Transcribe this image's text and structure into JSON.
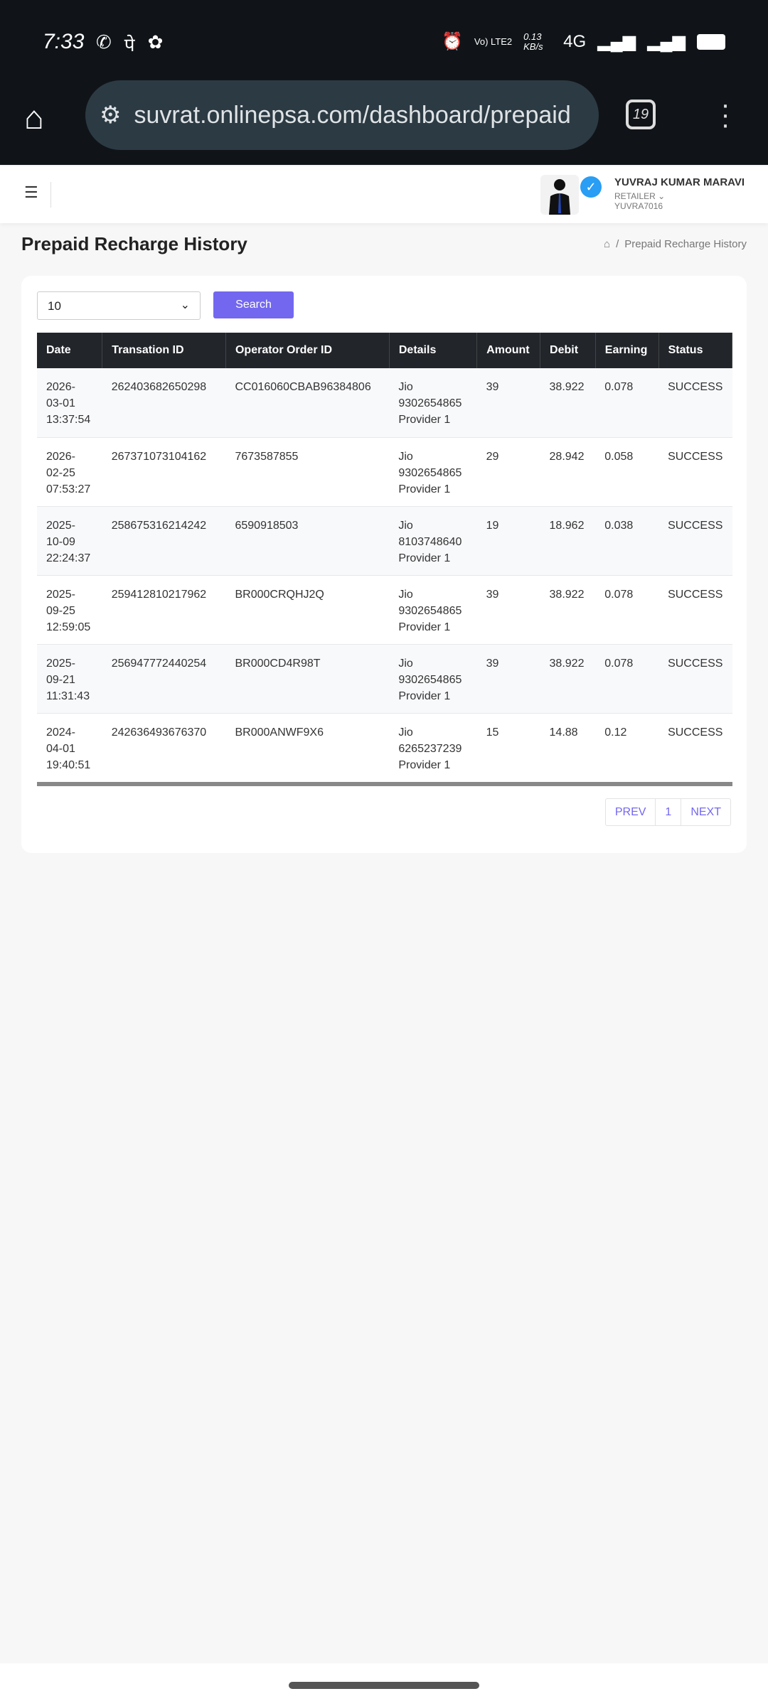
{
  "status_bar": {
    "time": "7:33",
    "net_speed": "0.13 KB/s",
    "network": "4G",
    "volte": "Vo) LTE2"
  },
  "browser": {
    "url": "suvrat.onlinepsa.com/dashboard/prepaid",
    "tab_count": "19"
  },
  "user": {
    "name": "YUVRAJ KUMAR MARAVI",
    "role": "RETAILER",
    "id": "YUVRA7016"
  },
  "page": {
    "title": "Prepaid Recharge History",
    "breadcrumb": "Prepaid Recharge History"
  },
  "filter": {
    "page_size": "10",
    "search_label": "Search"
  },
  "table": {
    "headers": [
      "Date",
      "Transation ID",
      "Operator Order ID",
      "Details",
      "Amount",
      "Debit",
      "Earning",
      "Status"
    ],
    "rows": [
      {
        "date": [
          "2026-",
          "03-01",
          "13:37:54"
        ],
        "txn": "262403682650298",
        "op": "CC016060CBAB96384806",
        "details": [
          "Jio",
          "9302654865",
          "Provider 1"
        ],
        "amount": "39",
        "debit": "38.922",
        "earning": "0.078",
        "status": "SUCCESS"
      },
      {
        "date": [
          "2026-",
          "02-25",
          "07:53:27"
        ],
        "txn": "267371073104162",
        "op": "7673587855",
        "details": [
          "Jio",
          "9302654865",
          "Provider 1"
        ],
        "amount": "29",
        "debit": "28.942",
        "earning": "0.058",
        "status": "SUCCESS"
      },
      {
        "date": [
          "2025-",
          "10-09",
          "22:24:37"
        ],
        "txn": "258675316214242",
        "op": "6590918503",
        "details": [
          "Jio",
          "8103748640",
          "Provider 1"
        ],
        "amount": "19",
        "debit": "18.962",
        "earning": "0.038",
        "status": "SUCCESS"
      },
      {
        "date": [
          "2025-",
          "09-25",
          "12:59:05"
        ],
        "txn": "259412810217962",
        "op": "BR000CRQHJ2Q",
        "details": [
          "Jio",
          "9302654865",
          "Provider 1"
        ],
        "amount": "39",
        "debit": "38.922",
        "earning": "0.078",
        "status": "SUCCESS"
      },
      {
        "date": [
          "2025-",
          "09-21",
          "11:31:43"
        ],
        "txn": "256947772440254",
        "op": "BR000CD4R98T",
        "details": [
          "Jio",
          "9302654865",
          "Provider 1"
        ],
        "amount": "39",
        "debit": "38.922",
        "earning": "0.078",
        "status": "SUCCESS"
      },
      {
        "date": [
          "2024-",
          "04-01",
          "19:40:51"
        ],
        "txn": "242636493676370",
        "op": "BR000ANWF9X6",
        "details": [
          "Jio",
          "6265237239",
          "Provider 1"
        ],
        "amount": "15",
        "debit": "14.88",
        "earning": "0.12",
        "status": "SUCCESS"
      }
    ]
  },
  "pagination": {
    "prev": "PREV",
    "current": "1",
    "next": "NEXT"
  },
  "colors": {
    "accent": "#7367f0",
    "header_bg": "#22252a"
  }
}
